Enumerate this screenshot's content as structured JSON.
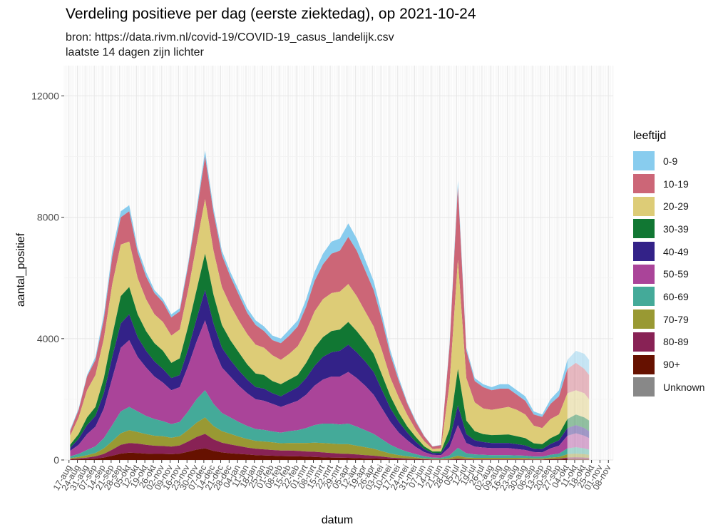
{
  "title": "Verdeling positieve per dag (eerste ziektedag), op 2021-10-24",
  "subtitle_1": "bron: https://data.rivm.nl/covid-19/COVID-19_casus_landelijk.csv",
  "subtitle_2": "laatste 14 dagen zijn lichter",
  "legend": {
    "title": "leeftijd",
    "items": [
      {
        "label": "0-9",
        "color": "#88CCEE"
      },
      {
        "label": "10-19",
        "color": "#CC6677"
      },
      {
        "label": "20-29",
        "color": "#DDCC77"
      },
      {
        "label": "30-39",
        "color": "#117733"
      },
      {
        "label": "40-49",
        "color": "#332288"
      },
      {
        "label": "50-59",
        "color": "#AA4499"
      },
      {
        "label": "60-69",
        "color": "#44AA99"
      },
      {
        "label": "70-79",
        "color": "#999933"
      },
      {
        "label": "80-89",
        "color": "#882255"
      },
      {
        "label": "90+",
        "color": "#661100"
      },
      {
        "label": "Unknown",
        "color": "#888888"
      }
    ]
  },
  "chart_data": {
    "type": "area",
    "stacked": true,
    "xlabel": "datum",
    "ylabel": "aantal_positief",
    "ylim": [
      0,
      13000
    ],
    "yticks": [
      0,
      4000,
      8000,
      12000
    ],
    "xlim": [
      "2020-08-13",
      "2021-11-12"
    ],
    "xticks": [
      "2020-08-17",
      "2020-08-24",
      "2020-08-31",
      "2020-09-07",
      "2020-09-14",
      "2020-09-21",
      "2020-09-28",
      "2020-10-05",
      "2020-10-12",
      "2020-10-19",
      "2020-10-26",
      "2020-11-02",
      "2020-11-09",
      "2020-11-16",
      "2020-11-23",
      "2020-11-30",
      "2020-12-07",
      "2020-12-14",
      "2020-12-21",
      "2020-12-28",
      "2021-01-04",
      "2021-01-11",
      "2021-01-18",
      "2021-01-25",
      "2021-02-01",
      "2021-02-08",
      "2021-02-15",
      "2021-02-22",
      "2021-03-01",
      "2021-03-08",
      "2021-03-15",
      "2021-03-22",
      "2021-03-29",
      "2021-04-05",
      "2021-04-12",
      "2021-04-19",
      "2021-04-26",
      "2021-05-03",
      "2021-05-10",
      "2021-05-17",
      "2021-05-24",
      "2021-05-31",
      "2021-06-07",
      "2021-06-14",
      "2021-06-21",
      "2021-06-28",
      "2021-07-05",
      "2021-07-12",
      "2021-07-19",
      "2021-07-26",
      "2021-08-02",
      "2021-08-09",
      "2021-08-16",
      "2021-08-23",
      "2021-08-30",
      "2021-09-06",
      "2021-09-13",
      "2021-09-20",
      "2021-09-27",
      "2021-10-04",
      "2021-10-11",
      "2021-10-18",
      "2021-10-25",
      "2021-11-01",
      "2021-11-08"
    ],
    "xtick_labels": [
      "17-aug",
      "24-aug",
      "31-aug",
      "07-sep",
      "14-sep",
      "21-sep",
      "28-sep",
      "05-okt",
      "12-okt",
      "19-okt",
      "26-okt",
      "02-nov",
      "09-nov",
      "16-nov",
      "23-nov",
      "30-nov",
      "07-dec",
      "14-dec",
      "21-dec",
      "28-dec",
      "04-jan",
      "11-jan",
      "18-jan",
      "25-jan",
      "01-feb",
      "08-feb",
      "15-feb",
      "22-feb",
      "01-mrt",
      "08-mrt",
      "15-mrt",
      "22-mrt",
      "29-mrt",
      "05-apr",
      "12-apr",
      "19-apr",
      "26-apr",
      "03-mei",
      "10-mei",
      "17-mei",
      "24-mei",
      "31-mei",
      "07-jun",
      "14-jun",
      "21-jun",
      "28-jun",
      "05-jul",
      "12-jul",
      "19-jul",
      "26-jul",
      "02-aug",
      "09-aug",
      "16-aug",
      "23-aug",
      "30-aug",
      "06-sep",
      "13-sep",
      "20-sep",
      "27-sep",
      "04-okt",
      "11-okt",
      "18-okt",
      "25-okt",
      "01-nov",
      "08-nov"
    ],
    "lighter_from": "2021-10-11",
    "series_names": [
      "0-9",
      "10-19",
      "20-29",
      "30-39",
      "40-49",
      "50-59",
      "60-69",
      "70-79",
      "80-89",
      "90+",
      "Unknown"
    ],
    "x": [
      "2020-08-18",
      "2020-08-25",
      "2020-09-01",
      "2020-09-08",
      "2020-09-15",
      "2020-09-22",
      "2020-09-29",
      "2020-10-06",
      "2020-10-13",
      "2020-10-20",
      "2020-10-27",
      "2020-11-03",
      "2020-11-10",
      "2020-11-17",
      "2020-11-24",
      "2020-12-01",
      "2020-12-08",
      "2020-12-15",
      "2020-12-22",
      "2020-12-29",
      "2021-01-05",
      "2021-01-12",
      "2021-01-19",
      "2021-01-26",
      "2021-02-02",
      "2021-02-09",
      "2021-02-16",
      "2021-02-23",
      "2021-03-02",
      "2021-03-09",
      "2021-03-16",
      "2021-03-23",
      "2021-03-30",
      "2021-04-06",
      "2021-04-13",
      "2021-04-20",
      "2021-04-27",
      "2021-05-04",
      "2021-05-11",
      "2021-05-18",
      "2021-05-25",
      "2021-06-01",
      "2021-06-08",
      "2021-06-15",
      "2021-06-22",
      "2021-06-29",
      "2021-07-06",
      "2021-07-13",
      "2021-07-20",
      "2021-07-27",
      "2021-08-03",
      "2021-08-10",
      "2021-08-17",
      "2021-08-24",
      "2021-08-31",
      "2021-09-07",
      "2021-09-14",
      "2021-09-21",
      "2021-09-28",
      "2021-10-05",
      "2021-10-12",
      "2021-10-19",
      "2021-10-23"
    ],
    "cumulative_tops": [
      [
        1000,
        1700,
        2800,
        3400,
        4800,
        6900,
        8200,
        8400,
        7000,
        6200,
        5600,
        5300,
        4800,
        5000,
        6500,
        8300,
        10200,
        8300,
        6900,
        6200,
        5600,
        5000,
        4600,
        4400,
        4100,
        4000,
        4300,
        4600,
        5300,
        6200,
        6800,
        7200,
        7300,
        7800,
        7300,
        6600,
        5900,
        4800,
        3600,
        2700,
        1900,
        1300,
        800,
        450,
        500,
        3800,
        9200,
        3700,
        2700,
        2500,
        2400,
        2500,
        2500,
        2300,
        2100,
        1600,
        1500,
        2000,
        2300,
        3300,
        3600,
        3500,
        3300
      ],
      [
        950,
        1650,
        2750,
        3300,
        4650,
        6700,
        8000,
        8200,
        6850,
        6050,
        5500,
        5200,
        4700,
        4900,
        6400,
        8150,
        10000,
        8150,
        6750,
        6050,
        5450,
        4850,
        4450,
        4250,
        3950,
        3850,
        4100,
        4400,
        5050,
        5900,
        6450,
        6800,
        6900,
        7350,
        6900,
        6250,
        5600,
        4600,
        3450,
        2600,
        1850,
        1250,
        780,
        440,
        490,
        3700,
        9000,
        3600,
        2600,
        2400,
        2300,
        2350,
        2350,
        2150,
        1950,
        1500,
        1420,
        1850,
        2100,
        3000,
        3200,
        3000,
        2800
      ],
      [
        800,
        1400,
        2300,
        2800,
        4000,
        5800,
        7100,
        7200,
        6000,
        5300,
        4800,
        4550,
        4100,
        4300,
        5600,
        7100,
        8600,
        6900,
        5700,
        5100,
        4600,
        4150,
        3800,
        3700,
        3450,
        3300,
        3500,
        3750,
        4250,
        4900,
        5300,
        5500,
        5550,
        5800,
        5400,
        4900,
        4400,
        3600,
        2700,
        2050,
        1480,
        1000,
        620,
        360,
        380,
        2500,
        6600,
        2700,
        1900,
        1700,
        1650,
        1700,
        1750,
        1650,
        1500,
        1130,
        1050,
        1350,
        1500,
        2200,
        2300,
        2200,
        2000
      ],
      [
        500,
        850,
        1400,
        1750,
        2700,
        4100,
        5400,
        5700,
        4800,
        4250,
        3850,
        3600,
        3200,
        3350,
        4400,
        5600,
        6800,
        5450,
        4450,
        3950,
        3550,
        3150,
        2850,
        2800,
        2600,
        2500,
        2650,
        2800,
        3200,
        3700,
        4050,
        4250,
        4300,
        4550,
        4250,
        3900,
        3500,
        2800,
        2100,
        1550,
        1100,
        760,
        450,
        280,
        280,
        1000,
        3000,
        1300,
        950,
        850,
        820,
        830,
        840,
        780,
        720,
        550,
        520,
        720,
        850,
        1350,
        1500,
        1400,
        1300
      ],
      [
        400,
        700,
        1150,
        1450,
        2200,
        3400,
        4500,
        4800,
        4050,
        3600,
        3250,
        3000,
        2700,
        2800,
        3650,
        4650,
        5600,
        4500,
        3700,
        3300,
        2950,
        2650,
        2400,
        2350,
        2200,
        2100,
        2250,
        2400,
        2700,
        3100,
        3400,
        3550,
        3600,
        3800,
        3550,
        3250,
        2900,
        2300,
        1700,
        1250,
        900,
        600,
        360,
        230,
        220,
        650,
        1800,
        850,
        650,
        590,
        560,
        560,
        560,
        520,
        480,
        370,
        360,
        530,
        650,
        1050,
        1150,
        1050,
        950
      ],
      [
        300,
        500,
        850,
        1100,
        1700,
        2700,
        3700,
        3950,
        3400,
        3050,
        2750,
        2550,
        2300,
        2400,
        3100,
        3900,
        4600,
        3700,
        3050,
        2750,
        2450,
        2200,
        2000,
        1950,
        1850,
        1750,
        1850,
        1950,
        2150,
        2450,
        2650,
        2750,
        2750,
        2900,
        2700,
        2450,
        2150,
        1700,
        1250,
        900,
        650,
        430,
        260,
        170,
        160,
        420,
        1150,
        560,
        440,
        410,
        390,
        390,
        390,
        360,
        330,
        260,
        250,
        380,
        470,
        800,
        880,
        800,
        720
      ],
      [
        120,
        200,
        330,
        450,
        720,
        1150,
        1600,
        1750,
        1600,
        1450,
        1350,
        1280,
        1180,
        1250,
        1600,
        2000,
        2300,
        1850,
        1550,
        1400,
        1250,
        1120,
        1020,
        990,
        940,
        900,
        950,
        980,
        1050,
        1150,
        1200,
        1200,
        1170,
        1200,
        1100,
        980,
        860,
        680,
        500,
        370,
        270,
        190,
        120,
        80,
        70,
        150,
        400,
        220,
        180,
        170,
        160,
        160,
        160,
        150,
        140,
        110,
        110,
        170,
        210,
        380,
        420,
        380,
        340
      ],
      [
        60,
        100,
        160,
        230,
        380,
        620,
        880,
        980,
        920,
        850,
        800,
        780,
        730,
        780,
        990,
        1230,
        1400,
        1120,
        950,
        860,
        770,
        690,
        630,
        610,
        580,
        550,
        560,
        560,
        560,
        570,
        560,
        540,
        520,
        520,
        470,
        420,
        370,
        290,
        210,
        160,
        120,
        85,
        55,
        40,
        35,
        60,
        140,
        80,
        70,
        70,
        70,
        70,
        70,
        70,
        65,
        50,
        50,
        80,
        100,
        190,
        210,
        190,
        170
      ],
      [
        30,
        50,
        80,
        120,
        200,
        340,
        500,
        560,
        540,
        500,
        470,
        460,
        440,
        480,
        610,
        760,
        860,
        680,
        570,
        510,
        460,
        410,
        370,
        350,
        330,
        310,
        310,
        300,
        280,
        270,
        250,
        230,
        210,
        200,
        180,
        160,
        140,
        110,
        80,
        60,
        45,
        35,
        25,
        18,
        15,
        20,
        40,
        25,
        22,
        22,
        22,
        22,
        22,
        22,
        21,
        18,
        18,
        30,
        38,
        80,
        90,
        80,
        70
      ],
      [
        10,
        20,
        30,
        45,
        80,
        140,
        210,
        240,
        230,
        210,
        200,
        200,
        190,
        210,
        270,
        340,
        380,
        300,
        250,
        220,
        200,
        180,
        160,
        150,
        140,
        130,
        125,
        120,
        110,
        100,
        90,
        80,
        75,
        70,
        60,
        55,
        50,
        40,
        30,
        22,
        18,
        14,
        10,
        8,
        7,
        8,
        12,
        8,
        8,
        8,
        8,
        8,
        8,
        8,
        8,
        7,
        7,
        12,
        15,
        30,
        35,
        30,
        28
      ],
      [
        0,
        0,
        0,
        0,
        0,
        0,
        0,
        0,
        0,
        0,
        0,
        0,
        0,
        0,
        0,
        0,
        0,
        0,
        0,
        0,
        0,
        0,
        0,
        0,
        0,
        0,
        0,
        0,
        0,
        0,
        0,
        0,
        0,
        0,
        0,
        0,
        0,
        0,
        0,
        0,
        0,
        0,
        0,
        0,
        0,
        0,
        0,
        0,
        0,
        0,
        0,
        0,
        0,
        0,
        0,
        0,
        0,
        0,
        0,
        0,
        0,
        0,
        0
      ]
    ]
  }
}
